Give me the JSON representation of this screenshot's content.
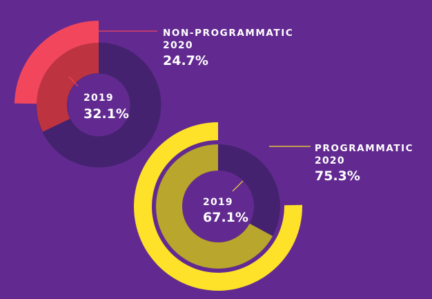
{
  "chart_data": {
    "type": "donut",
    "charts": [
      {
        "name": "NON-PROGRAMMATIC",
        "outer": {
          "label": "2020",
          "value": 24.7,
          "display": "24.7%"
        },
        "inner": {
          "label": "2019",
          "value": 32.1,
          "display": "32.1%"
        },
        "colors": {
          "outer": "#F2465C",
          "inner": "#BD3440",
          "track": "#45226F",
          "leader": "#F2465C"
        }
      },
      {
        "name": "PROGRAMMATIC",
        "outer": {
          "label": "2020",
          "value": 75.3,
          "display": "75.3%"
        },
        "inner": {
          "label": "2019",
          "value": 67.1,
          "display": "67.1%"
        },
        "colors": {
          "outer": "#FDE229",
          "inner": "#B9A62C",
          "track": "#45226F",
          "leader": "#FDE229"
        }
      }
    ]
  },
  "colors": {
    "background": "#622A90",
    "text": "#FFFFFF"
  }
}
